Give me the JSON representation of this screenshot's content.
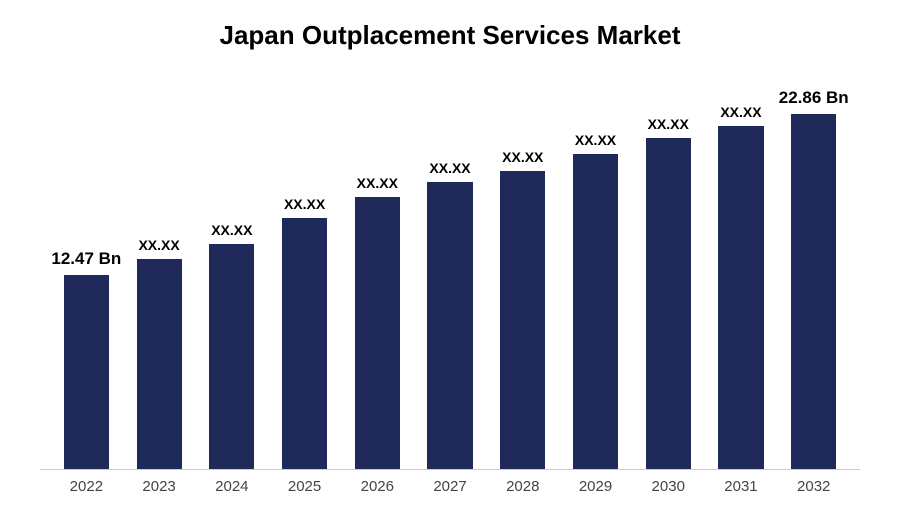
{
  "chart": {
    "type": "bar",
    "title": "Japan Outplacement Services Market",
    "title_fontsize": 26,
    "title_color": "#000000",
    "background_color": "#ffffff",
    "axis_line_color": "#cccccc",
    "categories": [
      "2022",
      "2023",
      "2024",
      "2025",
      "2026",
      "2027",
      "2028",
      "2029",
      "2030",
      "2031",
      "2032"
    ],
    "values": [
      12.47,
      13.5,
      14.5,
      16.2,
      17.5,
      18.5,
      19.2,
      20.3,
      21.3,
      22.1,
      22.86
    ],
    "bar_labels": [
      "12.47 Bn",
      "XX.XX",
      "XX.XX",
      "XX.XX",
      "XX.XX",
      "XX.XX",
      "XX.XX",
      "XX.XX",
      "XX.XX",
      "XX.XX",
      "22.86 Bn"
    ],
    "bar_label_sizes": [
      17,
      14,
      14,
      14,
      14,
      14,
      14,
      14,
      14,
      14,
      17
    ],
    "bar_color": "#1f2a5a",
    "ymax": 25,
    "bar_width_pct": 62,
    "xtick_fontsize": 15,
    "label_color": "#000000",
    "xtick_color": "#444444"
  }
}
